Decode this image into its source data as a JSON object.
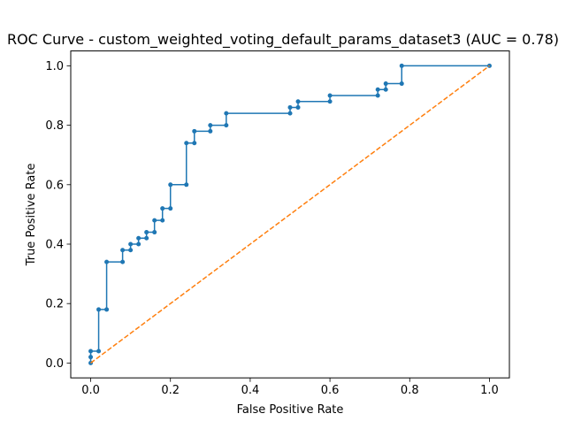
{
  "chart_data": {
    "type": "line",
    "title": "ROC Curve - custom_weighted_voting_default_params_dataset3 (AUC = 0.78)",
    "xlabel": "False Positive Rate",
    "ylabel": "True Positive Rate",
    "xlim": [
      -0.05,
      1.05
    ],
    "ylim": [
      -0.05,
      1.05
    ],
    "grid": false,
    "xticks": [
      "0.0",
      "0.2",
      "0.4",
      "0.6",
      "0.8",
      "1.0"
    ],
    "yticks": [
      "0.0",
      "0.2",
      "0.4",
      "0.6",
      "0.8",
      "1.0"
    ],
    "series": [
      {
        "color": "#1f77b4",
        "style": "solid",
        "marker": "dot",
        "x": [
          0.0,
          0.0,
          0.0,
          0.02,
          0.02,
          0.04,
          0.04,
          0.08,
          0.08,
          0.1,
          0.1,
          0.12,
          0.12,
          0.14,
          0.14,
          0.16,
          0.16,
          0.18,
          0.18,
          0.2,
          0.2,
          0.24,
          0.24,
          0.26,
          0.26,
          0.3,
          0.3,
          0.34,
          0.34,
          0.5,
          0.5,
          0.52,
          0.52,
          0.6,
          0.6,
          0.72,
          0.72,
          0.74,
          0.74,
          0.78,
          0.78,
          1.0
        ],
        "y": [
          0.0,
          0.02,
          0.04,
          0.04,
          0.18,
          0.18,
          0.34,
          0.34,
          0.38,
          0.38,
          0.4,
          0.4,
          0.42,
          0.42,
          0.44,
          0.44,
          0.48,
          0.48,
          0.52,
          0.52,
          0.6,
          0.6,
          0.74,
          0.74,
          0.78,
          0.78,
          0.8,
          0.8,
          0.84,
          0.84,
          0.86,
          0.86,
          0.88,
          0.88,
          0.9,
          0.9,
          0.92,
          0.92,
          0.94,
          0.94,
          1.0,
          1.0
        ]
      },
      {
        "color": "#ff7f0e",
        "style": "dashed",
        "marker": "none",
        "x": [
          0.0,
          1.0
        ],
        "y": [
          0.0,
          1.0
        ]
      }
    ]
  }
}
